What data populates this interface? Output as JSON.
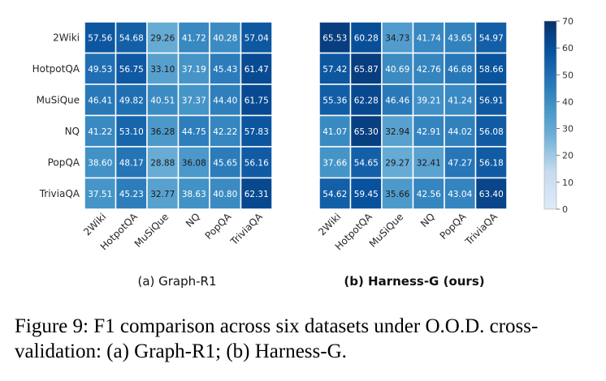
{
  "chart_data": [
    {
      "type": "heatmap",
      "title": "(a) Graph-R1",
      "rows": [
        "2Wiki",
        "HotpotQA",
        "MuSiQue",
        "NQ",
        "PopQA",
        "TriviaQA"
      ],
      "columns": [
        "2Wiki",
        "HotpotQA",
        "MuSiQue",
        "NQ",
        "PopQA",
        "TriviaQA"
      ],
      "values": [
        [
          "57.56",
          "54.68",
          "29.26",
          "41.72",
          "40.28",
          "57.04"
        ],
        [
          "49.53",
          "56.75",
          "33.10",
          "37.19",
          "45.43",
          "61.47"
        ],
        [
          "46.41",
          "49.82",
          "40.51",
          "37.37",
          "44.40",
          "61.75"
        ],
        [
          "41.22",
          "53.10",
          "36.28",
          "44.75",
          "42.22",
          "57.83"
        ],
        [
          "38.60",
          "48.17",
          "28.88",
          "36.08",
          "45.65",
          "56.16"
        ],
        [
          "37.51",
          "45.23",
          "32.77",
          "38.63",
          "40.80",
          "62.31"
        ]
      ]
    },
    {
      "type": "heatmap",
      "title": "(b) Harness-G (ours)",
      "rows": [
        "2Wiki",
        "HotpotQA",
        "MuSiQue",
        "NQ",
        "PopQA",
        "TriviaQA"
      ],
      "columns": [
        "2Wiki",
        "HotpotQA",
        "MuSiQue",
        "NQ",
        "PopQA",
        "TriviaQA"
      ],
      "values": [
        [
          "65.53",
          "60.28",
          "34.73",
          "41.74",
          "43.65",
          "54.97"
        ],
        [
          "57.42",
          "65.87",
          "40.69",
          "42.76",
          "46.68",
          "58.66"
        ],
        [
          "55.36",
          "62.28",
          "46.46",
          "39.21",
          "41.24",
          "56.91"
        ],
        [
          "41.07",
          "65.30",
          "32.94",
          "42.91",
          "44.02",
          "56.08"
        ],
        [
          "37.66",
          "54.65",
          "29.27",
          "32.41",
          "47.27",
          "56.18"
        ],
        [
          "54.62",
          "59.45",
          "35.66",
          "42.56",
          "43.04",
          "63.40"
        ]
      ]
    }
  ],
  "colorbar": {
    "min": 0,
    "max": 70,
    "ticks": [
      "0",
      "10",
      "20",
      "30",
      "40",
      "50",
      "60",
      "70"
    ],
    "colors": [
      "#cfe1f2",
      "#08306b"
    ]
  },
  "caption": "Figure 9: F1 comparison across six datasets under O.O.D. cross-validation: (a) Graph-R1; (b) Harness-G."
}
